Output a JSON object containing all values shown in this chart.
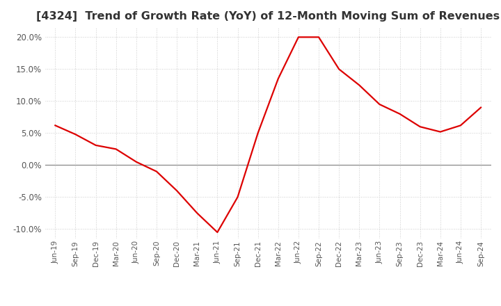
{
  "title": "[4324]  Trend of Growth Rate (YoY) of 12-Month Moving Sum of Revenues",
  "title_fontsize": 11.5,
  "line_color": "#dd0000",
  "background_color": "#ffffff",
  "grid_color": "#cccccc",
  "zero_line_color": "#888888",
  "ylim": [
    -0.115,
    0.215
  ],
  "yticks": [
    -0.1,
    -0.05,
    0.0,
    0.05,
    0.1,
    0.15,
    0.2
  ],
  "x_labels": [
    "Jun-19",
    "Sep-19",
    "Dec-19",
    "Mar-20",
    "Jun-20",
    "Sep-20",
    "Dec-20",
    "Mar-21",
    "Jun-21",
    "Sep-21",
    "Dec-21",
    "Mar-22",
    "Jun-22",
    "Sep-22",
    "Dec-22",
    "Mar-23",
    "Jun-23",
    "Sep-23",
    "Dec-23",
    "Mar-24",
    "Jun-24",
    "Sep-24"
  ],
  "y_values": [
    0.062,
    0.048,
    0.031,
    0.025,
    0.005,
    -0.01,
    -0.04,
    -0.075,
    -0.105,
    -0.05,
    0.05,
    0.135,
    0.2,
    0.2,
    0.15,
    0.125,
    0.095,
    0.08,
    0.06,
    0.052,
    0.062,
    0.09
  ]
}
